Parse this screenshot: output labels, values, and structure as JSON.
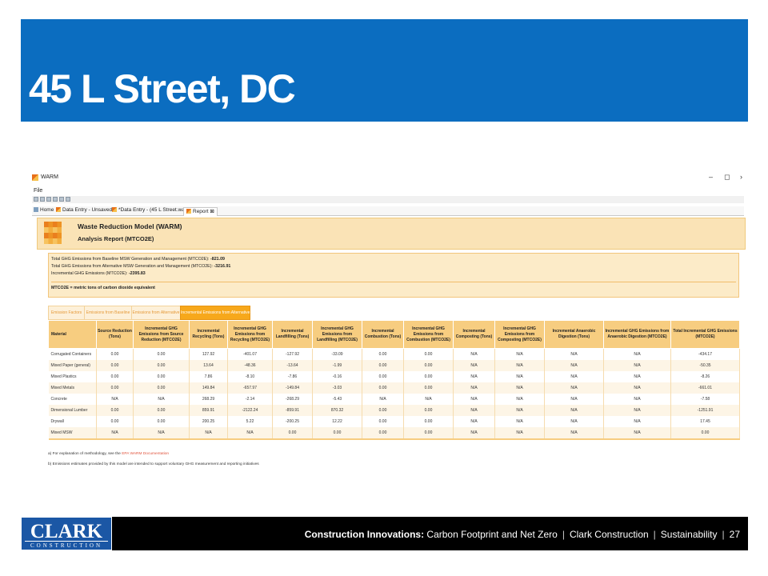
{
  "slide": {
    "title": "45 L Street, DC",
    "footer": {
      "logo_big": "CLARK",
      "logo_small": "CONSTRUCTION",
      "series_bold": "Construction Innovations:",
      "series_rest": "Carbon Footprint and Net Zero",
      "company": "Clark Construction",
      "section": "Sustainability",
      "page": "27",
      "separator": "|"
    }
  },
  "app": {
    "window_title": "WARM",
    "window_controls": {
      "minimize": "–",
      "restore": "◻",
      "close": "›"
    },
    "menu": {
      "file": "File"
    },
    "tabs": [
      {
        "label": "Home"
      },
      {
        "label": "Data Entry - Unsaved"
      },
      {
        "label": "*Data Entry - (45 L Street.warm)"
      },
      {
        "label": "Report ⊠"
      }
    ],
    "report": {
      "title": "Waste Reduction Model (WARM)",
      "subtitle": "Analysis Report (MTCO2E)"
    },
    "summary": {
      "line1_text": "Total GHG Emissions from Baseline MSW Generation and Management (MTCO2E): ",
      "line1_value": "-821.09",
      "line2_text": "Total GHG Emissions from Alternative MSW Generation and Management (MTCO2E): ",
      "line2_value": "-3216.91",
      "line3_text": "Incremental GHG Emissions (MTCO2E): ",
      "line3_value": "-2395.83",
      "note": "MTCO2E = metric tons of carbon dioxide equivalent"
    },
    "subtabs": [
      "Emission Factors",
      "Emissions from Baseline",
      "Emissions from Alternative",
      "Incremental Emissions from Alternative"
    ],
    "table": {
      "headers": [
        "Material",
        "Source Reduction (Tons)",
        "Incremental GHG Emissions from Source Reduction (MTCO2E)",
        "Incremental Recycling (Tons)",
        "Incremental GHG Emissions from Recycling (MTCO2E)",
        "Incremental Landfilling (Tons)",
        "Incremental GHG Emissions from Landfilling (MTCO2E)",
        "Incremental Combustion (Tons)",
        "Incremental GHG Emissions from Combustion (MTCO2E)",
        "Incremental Composting (Tons)",
        "Incremental GHG Emissions from Composting (MTCO2E)",
        "Incremental Anaerobic Digestion (Tons)",
        "Incremental GHG Emissions from Anaerobic Digestion (MTCO2E)",
        "Total Incremental GHG Emissions (MTCO2E)"
      ],
      "rows": [
        [
          "Corrugated Containers",
          "0.00",
          "0.00",
          "127.92",
          "-401.07",
          "-127.92",
          "-33.09",
          "0.00",
          "0.00",
          "N/A",
          "N/A",
          "N/A",
          "N/A",
          "-434.17"
        ],
        [
          "Mixed Paper (general)",
          "0.00",
          "0.00",
          "13.64",
          "-48.36",
          "-13.64",
          "-1.99",
          "0.00",
          "0.00",
          "N/A",
          "N/A",
          "N/A",
          "N/A",
          "-50.35"
        ],
        [
          "Mixed Plastics",
          "0.00",
          "0.00",
          "7.86",
          "-8.10",
          "-7.86",
          "-0.16",
          "0.00",
          "0.00",
          "N/A",
          "N/A",
          "N/A",
          "N/A",
          "-8.26"
        ],
        [
          "Mixed Metals",
          "0.00",
          "0.00",
          "149.84",
          "-657.97",
          "-149.84",
          "-3.03",
          "0.00",
          "0.00",
          "N/A",
          "N/A",
          "N/A",
          "N/A",
          "-661.01"
        ],
        [
          "Concrete",
          "N/A",
          "N/A",
          "268.29",
          "-2.14",
          "-268.29",
          "-5.43",
          "N/A",
          "N/A",
          "N/A",
          "N/A",
          "N/A",
          "N/A",
          "-7.58"
        ],
        [
          "Dimensional Lumber",
          "0.00",
          "0.00",
          "859.91",
          "-2122.24",
          "-859.91",
          "870.32",
          "0.00",
          "0.00",
          "N/A",
          "N/A",
          "N/A",
          "N/A",
          "-1251.91"
        ],
        [
          "Drywall",
          "0.00",
          "0.00",
          "200.25",
          "5.22",
          "-200.25",
          "12.22",
          "0.00",
          "0.00",
          "N/A",
          "N/A",
          "N/A",
          "N/A",
          "17.45"
        ],
        [
          "Mixed MSW",
          "N/A",
          "N/A",
          "N/A",
          "N/A",
          "0.00",
          "0.00",
          "0.00",
          "0.00",
          "N/A",
          "N/A",
          "N/A",
          "N/A",
          "0.00"
        ]
      ]
    },
    "footnotes": {
      "a_text": "a) For explanation of methodology, see the ",
      "a_link": "EPA WARM Documentation",
      "b_text": "b) Emissions estimates provided by this model are intended to support voluntary GHG measurement and reporting initiatives"
    }
  },
  "colors": {
    "title_bar": "#0b6dc0",
    "header_orange": "#f7cd80",
    "active_subtab": "#f7a81b",
    "footer_bg": "#000000",
    "logo_blue": "#1b57a5"
  }
}
